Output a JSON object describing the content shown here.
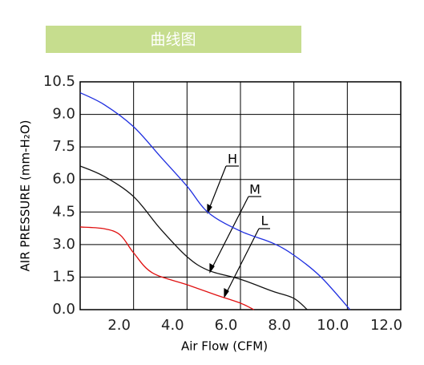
{
  "header": {
    "title": "曲线图"
  },
  "chart_data": {
    "type": "line",
    "x_label": "Air Flow (CFM)",
    "y_label": "AIR PRESSURE (mm-H₂O)",
    "xlim": [
      0,
      12
    ],
    "ylim": [
      0,
      10.5
    ],
    "xticks": [
      {
        "value": 2,
        "label": "2.0"
      },
      {
        "value": 4,
        "label": "4.0"
      },
      {
        "value": 6,
        "label": "6.0"
      },
      {
        "value": 8,
        "label": "8.0"
      },
      {
        "value": 10,
        "label": "10.0"
      },
      {
        "value": 12,
        "label": "12.0"
      }
    ],
    "yticks": [
      {
        "value": 0,
        "label": "0.0"
      },
      {
        "value": 1.5,
        "label": "1.5"
      },
      {
        "value": 3,
        "label": "3.0"
      },
      {
        "value": 4.5,
        "label": "4.5"
      },
      {
        "value": 6,
        "label": "6.0"
      },
      {
        "value": 7.5,
        "label": "7.5"
      },
      {
        "value": 9,
        "label": "9.0"
      },
      {
        "value": 10.5,
        "label": "10.5"
      }
    ],
    "grid": true,
    "series": [
      {
        "name": "H",
        "color": "#1f2fe0",
        "x": [
          0,
          0.9,
          2.0,
          3.0,
          4.0,
          4.8,
          6.0,
          7.2,
          8.0,
          9.0,
          10.1
        ],
        "values": [
          10.0,
          9.45,
          8.43,
          7.06,
          5.69,
          4.47,
          3.62,
          3.07,
          2.51,
          1.52,
          0
        ]
      },
      {
        "name": "M",
        "color": "#111111",
        "x": [
          0,
          0.9,
          2.0,
          3.0,
          4.0,
          4.8,
          6.0,
          7.2,
          8.0,
          8.5
        ],
        "values": [
          6.62,
          6.14,
          5.21,
          3.73,
          2.44,
          1.81,
          1.4,
          0.85,
          0.52,
          0
        ]
      },
      {
        "name": "L",
        "color": "#e01010",
        "x": [
          0,
          0.9,
          1.5,
          2.0,
          2.7,
          4.0,
          5.1,
          6.0,
          6.5
        ],
        "values": [
          3.81,
          3.73,
          3.44,
          2.62,
          1.7,
          1.15,
          0.67,
          0.3,
          0
        ]
      }
    ]
  }
}
